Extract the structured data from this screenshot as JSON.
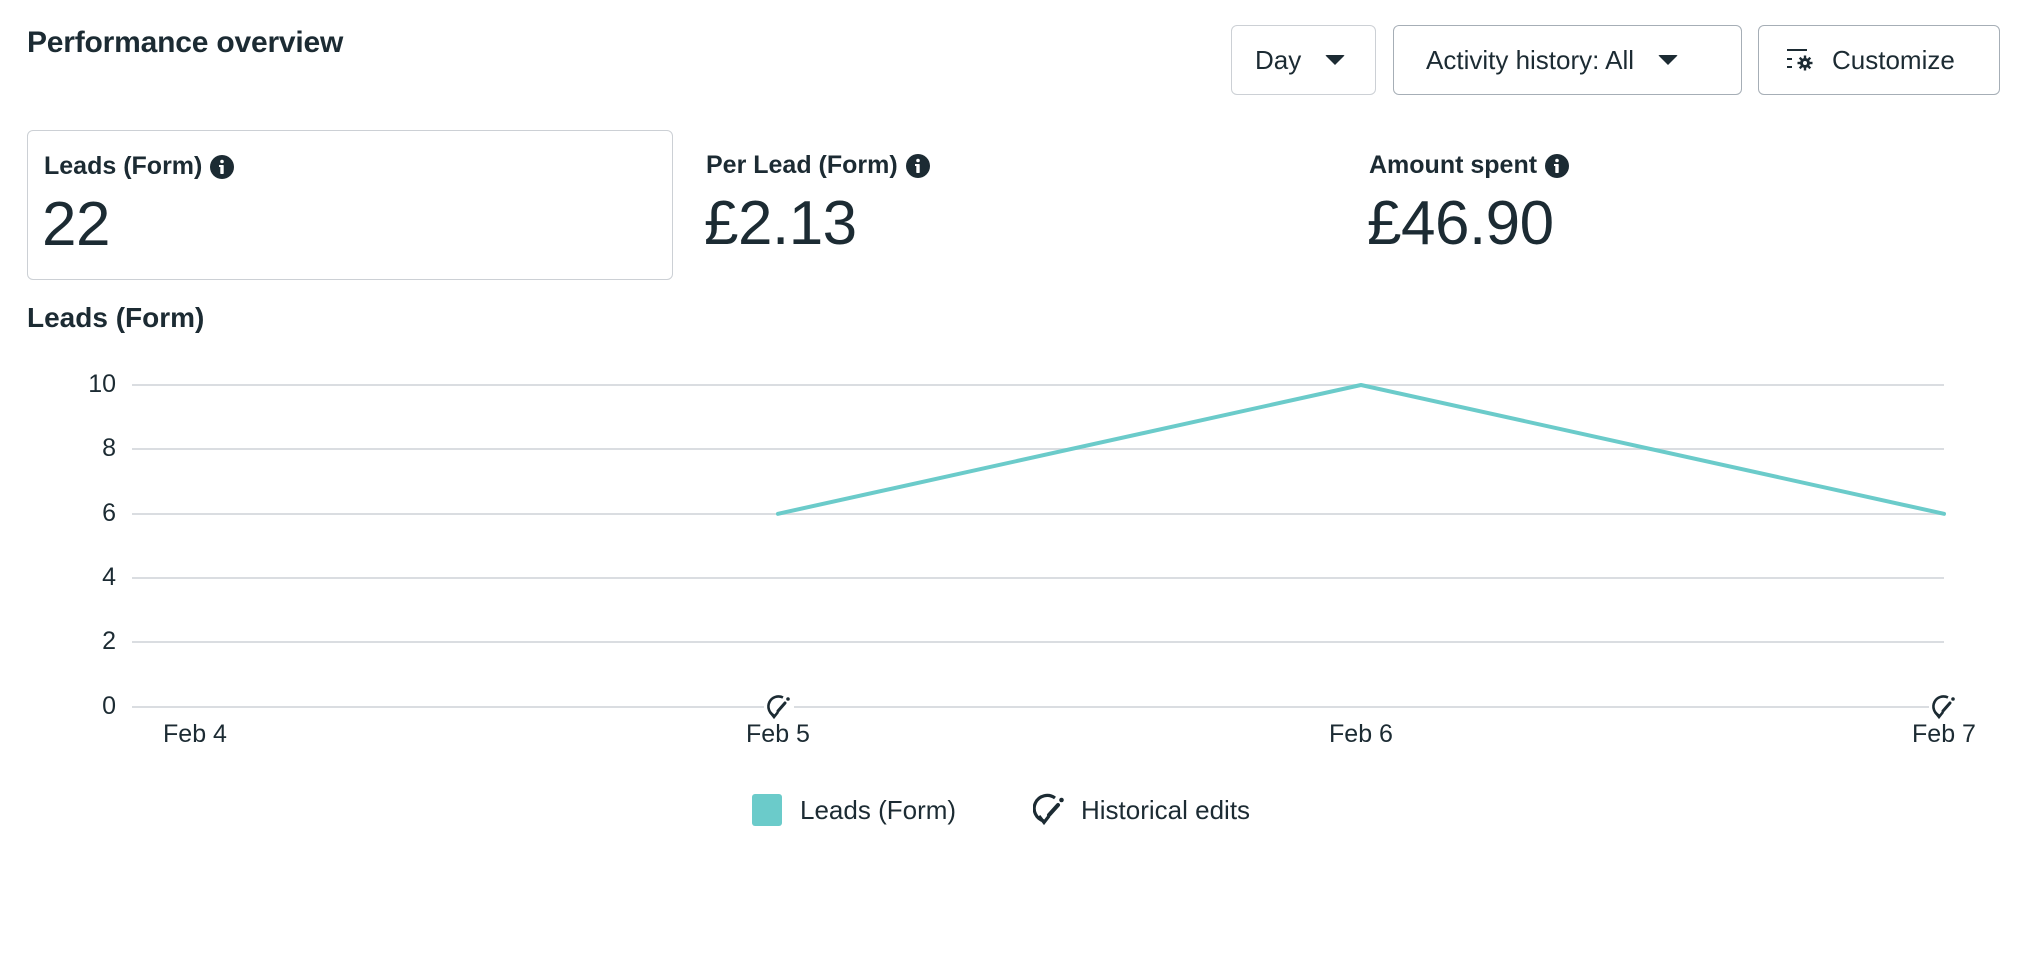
{
  "header": {
    "title": "Performance overview",
    "buttons": {
      "day": {
        "label": "Day",
        "icon": "caret-down-icon"
      },
      "activity": {
        "label": "Activity history: All",
        "icon": "caret-down-icon"
      },
      "customize": {
        "label": "Customize",
        "icon": "customize-gear-icon"
      }
    }
  },
  "metrics": [
    {
      "label": "Leads (Form)",
      "value": "22",
      "selected": true,
      "icon": "info-icon"
    },
    {
      "label": "Per Lead (Form)",
      "value": "£2.13",
      "selected": false,
      "icon": "info-icon"
    },
    {
      "label": "Amount spent",
      "value": "£46.90",
      "selected": false,
      "icon": "info-icon"
    }
  ],
  "chart": {
    "title": "Leads (Form)",
    "y_ticks": [
      "10",
      "8",
      "6",
      "4",
      "2",
      "0"
    ],
    "x_ticks": [
      "Feb 4",
      "Feb 5",
      "Feb 6",
      "Feb 7"
    ],
    "legend": {
      "series_label": "Leads (Form)",
      "edits_label": "Historical edits"
    }
  },
  "colors": {
    "series": "#6bcbca",
    "text": "#1c2b33",
    "gridline": "#dadde1",
    "border": "#ccd0d5"
  },
  "chart_data": {
    "type": "line",
    "title": "Leads (Form)",
    "xlabel": "",
    "ylabel": "",
    "categories": [
      "Feb 4",
      "Feb 5",
      "Feb 6",
      "Feb 7"
    ],
    "series": [
      {
        "name": "Leads (Form)",
        "values": [
          null,
          6,
          10,
          6
        ],
        "color": "#6bcbca"
      }
    ],
    "annotations": [
      {
        "type": "historical-edit",
        "x": "Feb 5"
      },
      {
        "type": "historical-edit",
        "x": "Feb 7"
      }
    ],
    "ylim": [
      0,
      10
    ],
    "y_ticks": [
      0,
      2,
      4,
      6,
      8,
      10
    ],
    "grid": true,
    "legend_position": "bottom-center",
    "legend": [
      "Leads (Form)",
      "Historical edits"
    ]
  }
}
